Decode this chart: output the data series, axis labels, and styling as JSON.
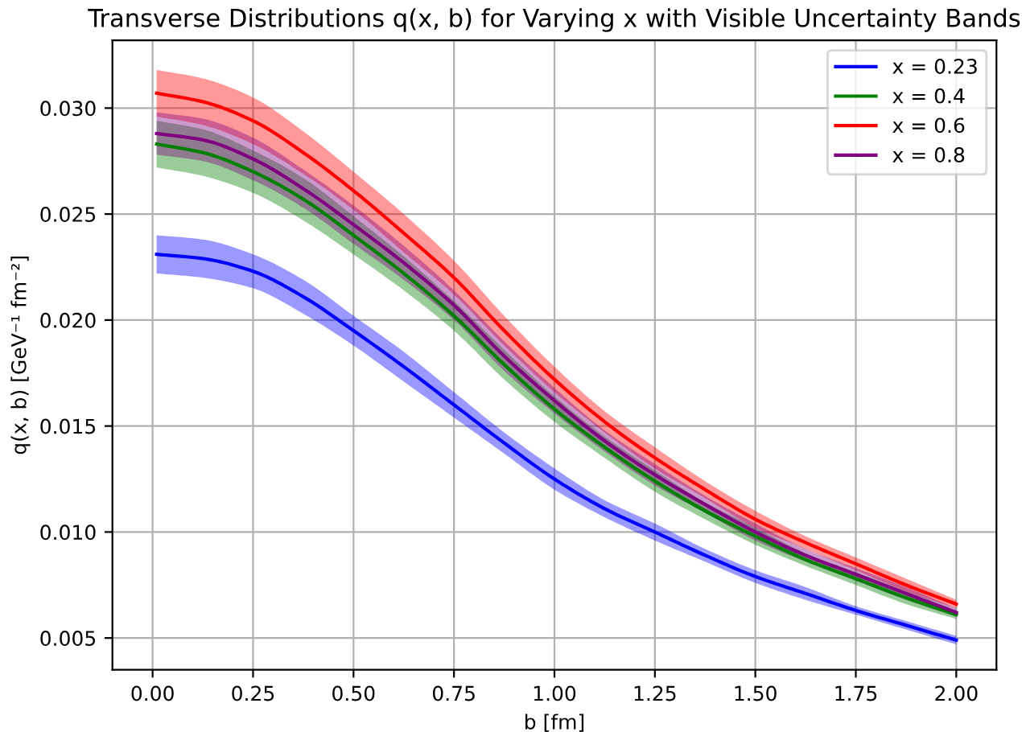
{
  "chart_data": {
    "type": "line",
    "title": "Transverse Distributions q(x, b) for Varying x with Visible Uncertainty Bands",
    "xlabel": "b [fm]",
    "ylabel": "q(x, b) [GeV⁻¹ fm⁻²]",
    "x": [
      0.01,
      0.125,
      0.25,
      0.375,
      0.5,
      0.625,
      0.75,
      0.875,
      1.0,
      1.125,
      1.25,
      1.375,
      1.5,
      1.625,
      1.75,
      1.875,
      2.0
    ],
    "series": [
      {
        "name": "x = 0.23",
        "color": "#0000ff",
        "values": [
          0.0231,
          0.0229,
          0.0223,
          0.0211,
          0.0195,
          0.0178,
          0.016,
          0.0142,
          0.0125,
          0.0111,
          0.01,
          0.0089,
          0.0079,
          0.0071,
          0.0063,
          0.0056,
          0.0049
        ],
        "lower": [
          0.0222,
          0.022,
          0.0215,
          0.0203,
          0.0188,
          0.0171,
          0.0154,
          0.0137,
          0.012,
          0.0107,
          0.0096,
          0.0086,
          0.0076,
          0.0068,
          0.0061,
          0.0054,
          0.0047
        ],
        "upper": [
          0.024,
          0.0238,
          0.0231,
          0.0219,
          0.0202,
          0.0185,
          0.0166,
          0.0147,
          0.013,
          0.0115,
          0.0104,
          0.0092,
          0.0082,
          0.0074,
          0.0065,
          0.0058,
          0.0051
        ]
      },
      {
        "name": "x = 0.4",
        "color": "#008000",
        "values": [
          0.0283,
          0.0279,
          0.027,
          0.0257,
          0.024,
          0.0222,
          0.0202,
          0.0179,
          0.0158,
          0.014,
          0.0124,
          0.011,
          0.0098,
          0.0087,
          0.0078,
          0.0069,
          0.0061
        ],
        "lower": [
          0.0272,
          0.0268,
          0.026,
          0.0247,
          0.0231,
          0.0214,
          0.0195,
          0.0172,
          0.0152,
          0.0135,
          0.0119,
          0.0106,
          0.0094,
          0.0084,
          0.0075,
          0.0066,
          0.0059
        ],
        "upper": [
          0.0294,
          0.029,
          0.028,
          0.0267,
          0.0249,
          0.023,
          0.0209,
          0.0186,
          0.0164,
          0.0145,
          0.0129,
          0.0114,
          0.0102,
          0.009,
          0.0081,
          0.0072,
          0.0063
        ]
      },
      {
        "name": "x = 0.6",
        "color": "#ff0000",
        "values": [
          0.0307,
          0.0303,
          0.0294,
          0.0279,
          0.0261,
          0.0241,
          0.022,
          0.0195,
          0.0172,
          0.0152,
          0.0135,
          0.012,
          0.0106,
          0.0095,
          0.0085,
          0.0075,
          0.0066
        ],
        "lower": [
          0.0296,
          0.0292,
          0.0283,
          0.0269,
          0.0252,
          0.0232,
          0.0212,
          0.0188,
          0.0166,
          0.0147,
          0.013,
          0.0116,
          0.0102,
          0.0092,
          0.0082,
          0.0072,
          0.0064
        ],
        "upper": [
          0.0318,
          0.0314,
          0.0305,
          0.0289,
          0.027,
          0.025,
          0.0228,
          0.0202,
          0.0178,
          0.0157,
          0.014,
          0.0124,
          0.011,
          0.0098,
          0.0088,
          0.0078,
          0.0068
        ]
      },
      {
        "name": "x = 0.8",
        "color": "#800080",
        "values": [
          0.0288,
          0.0285,
          0.0276,
          0.0262,
          0.0245,
          0.0227,
          0.0207,
          0.0183,
          0.0162,
          0.0143,
          0.0127,
          0.0113,
          0.01,
          0.0089,
          0.008,
          0.0071,
          0.0062
        ],
        "lower": [
          0.0278,
          0.0275,
          0.0266,
          0.0253,
          0.0236,
          0.0219,
          0.02,
          0.0176,
          0.0156,
          0.0138,
          0.0122,
          0.0109,
          0.0096,
          0.0086,
          0.0077,
          0.0068,
          0.006
        ],
        "upper": [
          0.0298,
          0.0295,
          0.0286,
          0.0271,
          0.0254,
          0.0235,
          0.0214,
          0.019,
          0.0168,
          0.0148,
          0.0132,
          0.0117,
          0.0104,
          0.0092,
          0.0083,
          0.0074,
          0.0064
        ]
      }
    ],
    "xlim": [
      -0.1,
      2.1
    ],
    "ylim": [
      0.0035,
      0.0332
    ],
    "xticks": [
      {
        "value": 0,
        "label": "0.00"
      },
      {
        "value": 0.25,
        "label": "0.25"
      },
      {
        "value": 0.5,
        "label": "0.50"
      },
      {
        "value": 0.75,
        "label": "0.75"
      },
      {
        "value": 1,
        "label": "1.00"
      },
      {
        "value": 1.25,
        "label": "1.25"
      },
      {
        "value": 1.5,
        "label": "1.50"
      },
      {
        "value": 1.75,
        "label": "1.75"
      },
      {
        "value": 2,
        "label": "2.00"
      }
    ],
    "yticks": [
      {
        "value": 0.005,
        "label": "0.005"
      },
      {
        "value": 0.01,
        "label": "0.010"
      },
      {
        "value": 0.015,
        "label": "0.015"
      },
      {
        "value": 0.02,
        "label": "0.020"
      },
      {
        "value": 0.025,
        "label": "0.025"
      },
      {
        "value": 0.03,
        "label": "0.030"
      }
    ],
    "grid": true,
    "legend": "top right",
    "marker": "none",
    "line_style": "solid"
  }
}
